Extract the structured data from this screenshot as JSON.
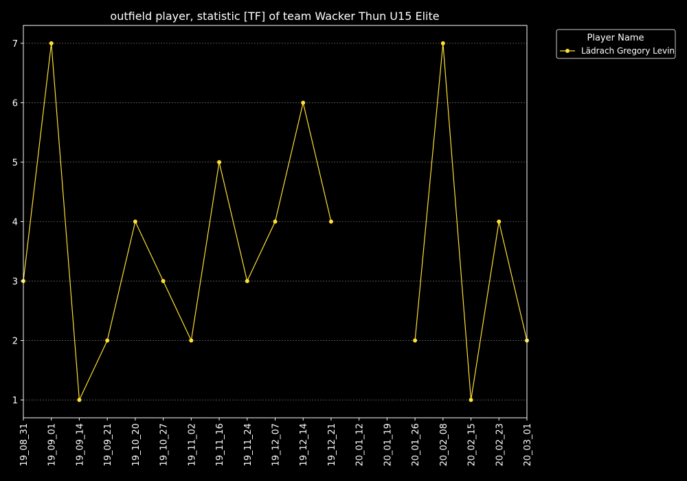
{
  "chart_data": {
    "type": "line",
    "title": "outfield player, statistic [TF] of team Wacker Thun U15 Elite",
    "xlabel": "",
    "ylabel": "",
    "categories": [
      "19_08_31",
      "19_09_01",
      "19_09_14",
      "19_09_21",
      "19_10_20",
      "19_10_27",
      "19_11_02",
      "19_11_16",
      "19_11_24",
      "19_12_07",
      "19_12_14",
      "19_12_21",
      "20_01_12",
      "20_01_19",
      "20_01_26",
      "20_02_08",
      "20_02_15",
      "20_02_23",
      "20_03_01"
    ],
    "series": [
      {
        "name": "Lädrach Gregory Levin",
        "values": [
          3,
          7,
          1,
          2,
          4,
          3,
          2,
          5,
          3,
          4,
          6,
          4,
          null,
          null,
          2,
          7,
          1,
          4,
          2
        ]
      }
    ],
    "yticks": [
      1,
      2,
      3,
      4,
      5,
      6,
      7
    ],
    "ylim": [
      0.7,
      7.3
    ],
    "grid": true,
    "legend": {
      "title": "Player Name",
      "placement": "outside-top-right"
    },
    "colors": {
      "background": "#000000",
      "series": "#ffe135",
      "grid": "#888888",
      "text": "#ffffff",
      "axes": "#ffffff"
    }
  }
}
